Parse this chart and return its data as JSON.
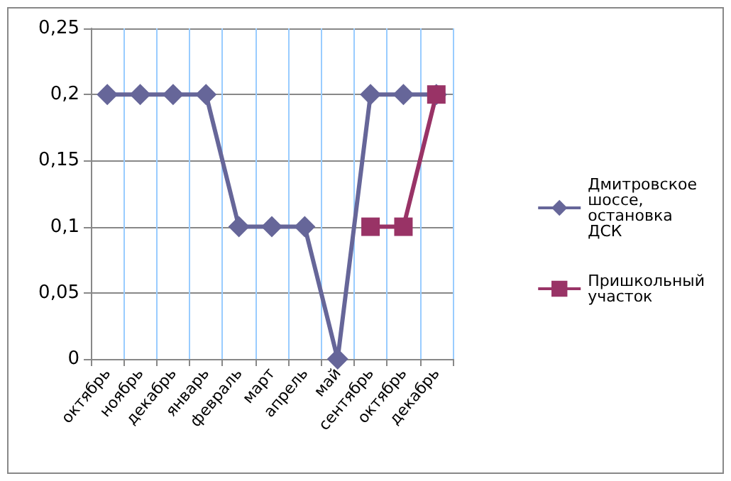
{
  "chart_data": {
    "type": "line",
    "categories": [
      "октябрь",
      "ноябрь",
      "декабрь",
      "январь",
      "февраль",
      "март",
      "апрель",
      "май",
      "сентябрь",
      "октябрь",
      "декабрь"
    ],
    "series": [
      {
        "name": "Дмитровское шоссе, остановка ДСК",
        "color": "#666699",
        "marker": "diamond",
        "values": [
          0.2,
          0.2,
          0.2,
          0.2,
          0.1,
          0.1,
          0.1,
          0,
          0.2,
          0.2,
          0.2
        ]
      },
      {
        "name": "Пришкольный участок",
        "color": "#993366",
        "marker": "square",
        "values": [
          null,
          null,
          null,
          null,
          null,
          null,
          null,
          null,
          0.1,
          0.1,
          0.2
        ]
      }
    ],
    "ylim": [
      0,
      0.25
    ],
    "yticks": [
      0,
      {
        "value": 0.05,
        "label": "0,05"
      },
      {
        "value": 0.1,
        "label": "0,1"
      },
      {
        "value": 0.15,
        "label": "0,15"
      },
      {
        "value": 0.2,
        "label": "0,2"
      },
      {
        "value": 0.25,
        "label": "0,25"
      }
    ],
    "grid": true,
    "legend": "right",
    "line_style": "solid"
  }
}
